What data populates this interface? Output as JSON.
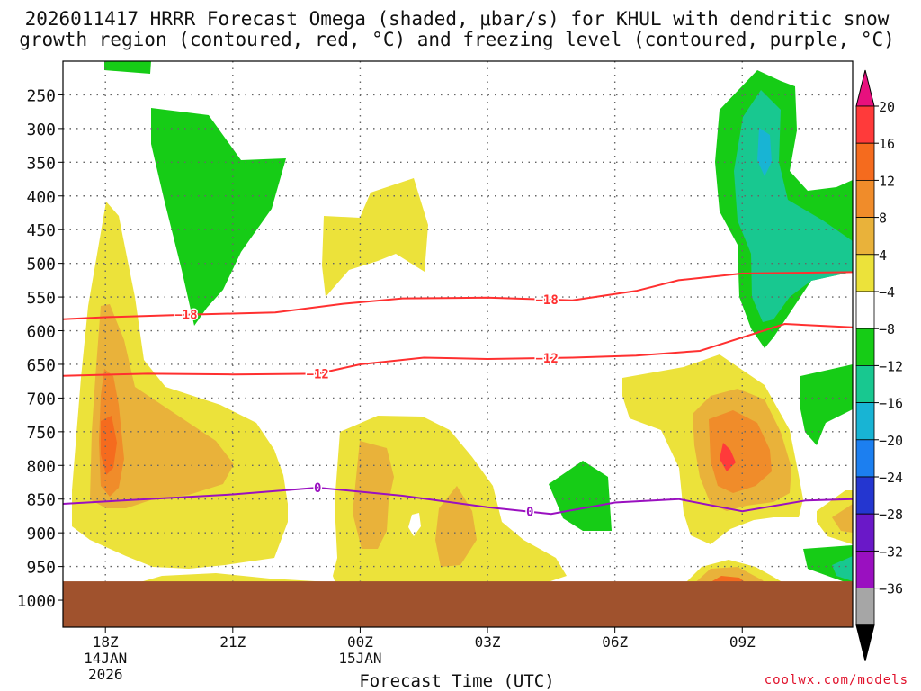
{
  "chart_data": {
    "type": "heatmap",
    "title_line1": "2026011417 HRRR Forecast Omega (shaded, μbar/s) for KHUL with dendritic snow",
    "title_line2": "growth region (contoured, red, °C) and freezing level (contoured, purple, °C)",
    "xlabel": "Forecast Time (UTC)",
    "x_ticks": [
      {
        "hour": 0,
        "label": "18Z",
        "sub1": "14JAN",
        "sub2": "2026"
      },
      {
        "hour": 3,
        "label": "21Z",
        "sub1": "",
        "sub2": ""
      },
      {
        "hour": 6,
        "label": "00Z",
        "sub1": "15JAN",
        "sub2": ""
      },
      {
        "hour": 9,
        "label": "03Z",
        "sub1": "",
        "sub2": ""
      },
      {
        "hour": 12,
        "label": "06Z",
        "sub1": "",
        "sub2": ""
      },
      {
        "hour": 15,
        "label": "09Z",
        "sub1": "",
        "sub2": ""
      }
    ],
    "xlim": [
      -1,
      17.6
    ],
    "y_ticks": [
      250,
      300,
      350,
      400,
      450,
      500,
      550,
      600,
      650,
      700,
      750,
      800,
      850,
      900,
      950,
      1000
    ],
    "ylim": [
      200,
      1040
    ],
    "surface_pressure": 972,
    "colorbar": {
      "labels": [
        "20",
        "16",
        "12",
        "8",
        "4",
        "−4",
        "−8",
        "−12",
        "−16",
        "−20",
        "−24",
        "−28",
        "−32",
        "−36"
      ],
      "colors": [
        "#ff3a3a",
        "#f56b1e",
        "#f08c2a",
        "#e9b23a",
        "#ece23a",
        "#ffffff",
        "#16cc16",
        "#18c890",
        "#18b4d4",
        "#1c7ff0",
        "#2436d0",
        "#6a18c8",
        "#9a10c0",
        "#a6a6a6"
      ],
      "top_color": "#e8107e",
      "bottom_color": "#000000"
    },
    "isotherms": [
      {
        "value": -18,
        "label": "−18",
        "color": "#ff3030",
        "points": [
          [
            -1,
            583
          ],
          [
            0,
            580
          ],
          [
            2,
            576
          ],
          [
            4,
            573
          ],
          [
            5.6,
            560
          ],
          [
            7,
            552
          ],
          [
            9,
            551
          ],
          [
            11,
            555
          ],
          [
            12.5,
            541
          ],
          [
            13.5,
            525
          ],
          [
            15,
            515
          ],
          [
            17.6,
            513
          ]
        ],
        "label_hours": [
          1.9,
          10.4
        ]
      },
      {
        "value": -12,
        "label": "−12",
        "color": "#ff3030",
        "points": [
          [
            -1,
            667
          ],
          [
            1,
            664
          ],
          [
            3,
            665
          ],
          [
            5,
            664
          ],
          [
            6,
            650
          ],
          [
            7.5,
            640
          ],
          [
            9,
            642
          ],
          [
            11,
            640
          ],
          [
            12.5,
            637
          ],
          [
            14,
            630
          ],
          [
            16,
            590
          ],
          [
            17.6,
            595
          ]
        ],
        "label_hours": [
          5.0,
          10.4
        ]
      },
      {
        "value": 0,
        "label": "0",
        "color": "#9a10c0",
        "points": [
          [
            -1,
            857
          ],
          [
            1,
            850
          ],
          [
            3,
            843
          ],
          [
            5,
            833
          ],
          [
            7,
            845
          ],
          [
            9,
            862
          ],
          [
            10.5,
            872
          ],
          [
            12,
            855
          ],
          [
            13.5,
            850
          ],
          [
            15,
            868
          ],
          [
            16.5,
            852
          ],
          [
            17.6,
            850
          ]
        ],
        "label_hours": [
          5.0,
          10.0
        ]
      }
    ],
    "credit": "coolwx.com/models"
  }
}
